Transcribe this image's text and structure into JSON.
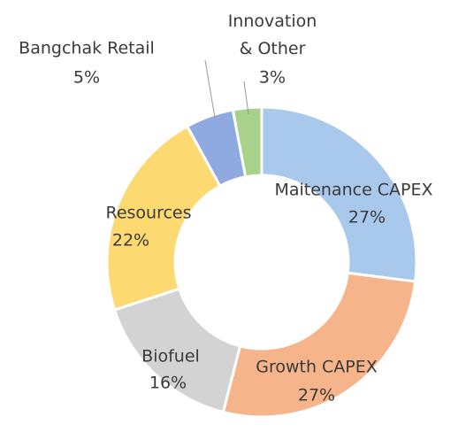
{
  "chart_data": {
    "type": "donut",
    "categories": [
      "Maitenance CAPEX",
      "Growth CAPEX",
      "Biofuel",
      "Resources",
      "Bangchak Retail",
      "Innovation & Other"
    ],
    "values": [
      27,
      27,
      16,
      22,
      5,
      3
    ],
    "value_labels": [
      "27%",
      "27%",
      "16%",
      "22%",
      "5%",
      "3%"
    ],
    "colors": [
      "#a9c9ec",
      "#f5b48a",
      "#d3d3d3",
      "#fcd971",
      "#8eaae0",
      "#a8d18c"
    ]
  }
}
